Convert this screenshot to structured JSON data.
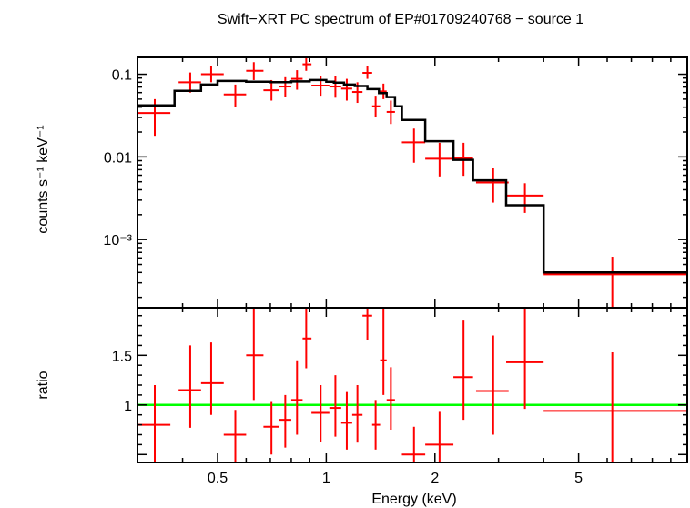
{
  "chart_data": {
    "type": "scatter",
    "title": "Swift−XRT PC spectrum of EP#01709240768 − source 1",
    "xlabel": "Energy (keV)",
    "x_scale": "log",
    "xlim": [
      0.3,
      10
    ],
    "x_ticks": [
      {
        "value": 0.5,
        "label": "0.5"
      },
      {
        "value": 1,
        "label": "1"
      },
      {
        "value": 2,
        "label": "2"
      },
      {
        "value": 5,
        "label": "5"
      }
    ],
    "colors": {
      "data": "#ff0000",
      "model": "#000000",
      "unity": "#00ff00",
      "frame": "#000000"
    },
    "panels": [
      {
        "id": "spectrum",
        "ylabel": "counts s⁻¹ keV⁻¹",
        "y_scale": "log",
        "ylim": [
          0.00015,
          0.16
        ],
        "y_ticks": [
          {
            "value": 0.1,
            "label": "0.1"
          },
          {
            "value": 0.01,
            "label": "0.01"
          },
          {
            "value": 0.001,
            "label": "10⁻³"
          }
        ],
        "series": [
          {
            "kind": "errorbars",
            "points": [
              {
                "x": 0.335,
                "xlo": 0.3,
                "xhi": 0.37,
                "y": 0.034,
                "ylo": 0.018,
                "yhi": 0.05
              },
              {
                "x": 0.42,
                "xlo": 0.39,
                "xhi": 0.45,
                "y": 0.08,
                "ylo": 0.06,
                "yhi": 0.105
              },
              {
                "x": 0.48,
                "xlo": 0.45,
                "xhi": 0.52,
                "y": 0.1,
                "ylo": 0.08,
                "yhi": 0.125
              },
              {
                "x": 0.56,
                "xlo": 0.52,
                "xhi": 0.6,
                "y": 0.057,
                "ylo": 0.04,
                "yhi": 0.075
              },
              {
                "x": 0.63,
                "xlo": 0.6,
                "xhi": 0.67,
                "y": 0.11,
                "ylo": 0.085,
                "yhi": 0.14
              },
              {
                "x": 0.705,
                "xlo": 0.67,
                "xhi": 0.74,
                "y": 0.064,
                "ylo": 0.048,
                "yhi": 0.085
              },
              {
                "x": 0.77,
                "xlo": 0.74,
                "xhi": 0.8,
                "y": 0.071,
                "ylo": 0.053,
                "yhi": 0.092
              },
              {
                "x": 0.83,
                "xlo": 0.8,
                "xhi": 0.86,
                "y": 0.088,
                "ylo": 0.065,
                "yhi": 0.112
              },
              {
                "x": 0.88,
                "xlo": 0.86,
                "xhi": 0.91,
                "y": 0.132,
                "ylo": 0.11,
                "yhi": 0.16
              },
              {
                "x": 0.965,
                "xlo": 0.91,
                "xhi": 1.02,
                "y": 0.073,
                "ylo": 0.055,
                "yhi": 0.095
              },
              {
                "x": 1.06,
                "xlo": 1.02,
                "xhi": 1.1,
                "y": 0.071,
                "ylo": 0.052,
                "yhi": 0.094
              },
              {
                "x": 1.14,
                "xlo": 1.1,
                "xhi": 1.18,
                "y": 0.067,
                "ylo": 0.048,
                "yhi": 0.088
              },
              {
                "x": 1.22,
                "xlo": 1.18,
                "xhi": 1.26,
                "y": 0.061,
                "ylo": 0.045,
                "yhi": 0.08
              },
              {
                "x": 1.3,
                "xlo": 1.26,
                "xhi": 1.34,
                "y": 0.104,
                "ylo": 0.088,
                "yhi": 0.125
              },
              {
                "x": 1.37,
                "xlo": 1.34,
                "xhi": 1.41,
                "y": 0.041,
                "ylo": 0.03,
                "yhi": 0.055
              },
              {
                "x": 1.44,
                "xlo": 1.41,
                "xhi": 1.47,
                "y": 0.062,
                "ylo": 0.05,
                "yhi": 0.077
              },
              {
                "x": 1.51,
                "xlo": 1.47,
                "xhi": 1.55,
                "y": 0.035,
                "ylo": 0.025,
                "yhi": 0.048
              },
              {
                "x": 1.75,
                "xlo": 1.62,
                "xhi": 1.88,
                "y": 0.015,
                "ylo": 0.0085,
                "yhi": 0.022
              },
              {
                "x": 2.06,
                "xlo": 1.88,
                "xhi": 2.25,
                "y": 0.0095,
                "ylo": 0.0058,
                "yhi": 0.0148
              },
              {
                "x": 2.4,
                "xlo": 2.25,
                "xhi": 2.55,
                "y": 0.0096,
                "ylo": 0.0059,
                "yhi": 0.0148
              },
              {
                "x": 2.9,
                "xlo": 2.6,
                "xhi": 3.2,
                "y": 0.0049,
                "ylo": 0.0028,
                "yhi": 0.0074
              },
              {
                "x": 3.55,
                "xlo": 3.15,
                "xhi": 4.0,
                "y": 0.0034,
                "ylo": 0.0021,
                "yhi": 0.0048
              },
              {
                "x": 6.2,
                "xlo": 4.0,
                "xhi": 10,
                "y": 0.00038,
                "ylo": 0.00015,
                "yhi": 0.00062
              }
            ]
          },
          {
            "kind": "step",
            "x": [
              0.3,
              0.38,
              0.45,
              0.5,
              0.6,
              0.7,
              0.8,
              0.9,
              1.0,
              1.05,
              1.12,
              1.2,
              1.3,
              1.4,
              1.47,
              1.55,
              1.62,
              1.88,
              2.25,
              2.55,
              3.15,
              4.0,
              10
            ],
            "y": [
              0.042,
              0.063,
              0.075,
              0.083,
              0.081,
              0.08,
              0.082,
              0.085,
              0.081,
              0.079,
              0.075,
              0.072,
              0.066,
              0.059,
              0.053,
              0.041,
              0.028,
              0.0155,
              0.0092,
              0.0052,
              0.0026,
              0.0004
            ]
          }
        ]
      },
      {
        "id": "ratio",
        "ylabel": "ratio",
        "y_scale": "linear",
        "ylim": [
          0.42,
          1.98
        ],
        "y_ticks": [
          {
            "value": 1,
            "label": "1"
          },
          {
            "value": 1.5,
            "label": "1.5"
          }
        ],
        "reference_line": 1,
        "series": [
          {
            "kind": "errorbars",
            "points": [
              {
                "x": 0.335,
                "xlo": 0.3,
                "xhi": 0.37,
                "y": 0.8,
                "ylo": 0.4,
                "yhi": 1.2
              },
              {
                "x": 0.42,
                "xlo": 0.39,
                "xhi": 0.45,
                "y": 1.15,
                "ylo": 0.77,
                "yhi": 1.6
              },
              {
                "x": 0.48,
                "xlo": 0.45,
                "xhi": 0.52,
                "y": 1.22,
                "ylo": 0.9,
                "yhi": 1.63
              },
              {
                "x": 0.56,
                "xlo": 0.52,
                "xhi": 0.6,
                "y": 0.7,
                "ylo": 0.42,
                "yhi": 0.95
              },
              {
                "x": 0.63,
                "xlo": 0.6,
                "xhi": 0.67,
                "y": 1.5,
                "ylo": 1.05,
                "yhi": 1.98
              },
              {
                "x": 0.705,
                "xlo": 0.67,
                "xhi": 0.74,
                "y": 0.78,
                "ylo": 0.5,
                "yhi": 1.03
              },
              {
                "x": 0.77,
                "xlo": 0.74,
                "xhi": 0.8,
                "y": 0.85,
                "ylo": 0.57,
                "yhi": 1.1
              },
              {
                "x": 0.83,
                "xlo": 0.8,
                "xhi": 0.86,
                "y": 1.05,
                "ylo": 0.7,
                "yhi": 1.45
              },
              {
                "x": 0.88,
                "xlo": 0.86,
                "xhi": 0.91,
                "y": 1.67,
                "ylo": 1.37,
                "yhi": 1.98
              },
              {
                "x": 0.965,
                "xlo": 0.91,
                "xhi": 1.02,
                "y": 0.92,
                "ylo": 0.63,
                "yhi": 1.2
              },
              {
                "x": 1.06,
                "xlo": 1.02,
                "xhi": 1.1,
                "y": 0.97,
                "ylo": 0.68,
                "yhi": 1.3
              },
              {
                "x": 1.14,
                "xlo": 1.1,
                "xhi": 1.18,
                "y": 0.82,
                "ylo": 0.55,
                "yhi": 1.13
              },
              {
                "x": 1.22,
                "xlo": 1.18,
                "xhi": 1.26,
                "y": 0.9,
                "ylo": 0.62,
                "yhi": 1.2
              },
              {
                "x": 1.3,
                "xlo": 1.26,
                "xhi": 1.34,
                "y": 1.9,
                "ylo": 1.65,
                "yhi": 1.98
              },
              {
                "x": 1.37,
                "xlo": 1.34,
                "xhi": 1.41,
                "y": 0.8,
                "ylo": 0.55,
                "yhi": 1.05
              },
              {
                "x": 1.44,
                "xlo": 1.41,
                "xhi": 1.47,
                "y": 1.45,
                "ylo": 1.1,
                "yhi": 1.98
              },
              {
                "x": 1.51,
                "xlo": 1.47,
                "xhi": 1.55,
                "y": 1.05,
                "ylo": 0.75,
                "yhi": 1.38
              },
              {
                "x": 1.75,
                "xlo": 1.62,
                "xhi": 1.88,
                "y": 0.5,
                "ylo": 0.42,
                "yhi": 0.78
              },
              {
                "x": 2.06,
                "xlo": 1.88,
                "xhi": 2.25,
                "y": 0.6,
                "ylo": 0.42,
                "yhi": 0.93
              },
              {
                "x": 2.4,
                "xlo": 2.25,
                "xhi": 2.55,
                "y": 1.28,
                "ylo": 0.85,
                "yhi": 1.85
              },
              {
                "x": 2.9,
                "xlo": 2.6,
                "xhi": 3.2,
                "y": 1.14,
                "ylo": 0.7,
                "yhi": 1.7
              },
              {
                "x": 3.55,
                "xlo": 3.15,
                "xhi": 4.0,
                "y": 1.43,
                "ylo": 0.96,
                "yhi": 1.98
              },
              {
                "x": 6.2,
                "xlo": 4.0,
                "xhi": 10,
                "y": 0.94,
                "ylo": 0.42,
                "yhi": 1.53
              }
            ]
          }
        ]
      }
    ]
  }
}
